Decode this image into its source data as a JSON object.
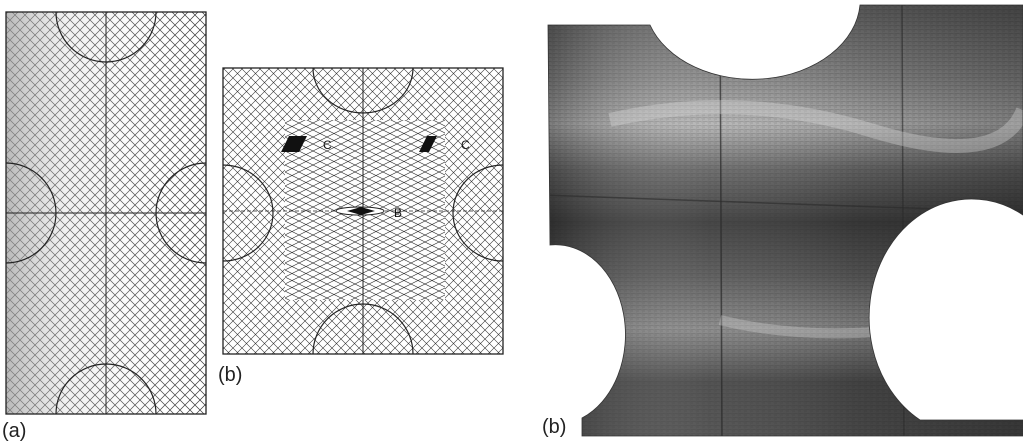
{
  "panels": [
    {
      "label": "(a)"
    },
    {
      "label": "(b)",
      "markers": {
        "c_left": "C",
        "c_right": "C",
        "b": "B"
      }
    },
    {
      "label": "(b)"
    }
  ]
}
